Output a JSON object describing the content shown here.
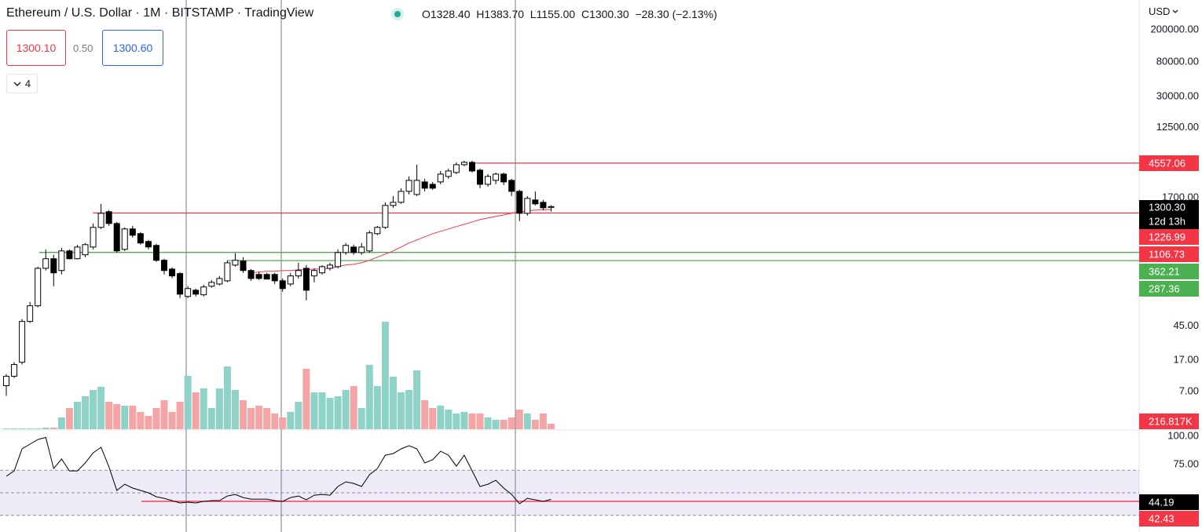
{
  "header": {
    "title": "Ethereum / U.S. Dollar · 1M · BITSTAMP · TradingView",
    "ohlc": [
      {
        "key": "O",
        "value": "1328.40"
      },
      {
        "key": "H",
        "value": "1383.70"
      },
      {
        "key": "L",
        "value": "1155.00"
      },
      {
        "key": "C",
        "value": "1300.30"
      }
    ],
    "change": "−28.30 (−2.13%)",
    "bid": "1300.10",
    "spread": "0.50",
    "ask": "1300.60",
    "indicators": "4",
    "currency": "USD"
  },
  "chart_data": [
    {
      "type": "candlestick",
      "log_scale": true,
      "grid": false,
      "ylim": [
        2.41,
        465000
      ],
      "yticks": [
        {
          "value": 200000,
          "label": "200000.00"
        },
        {
          "value": 80000,
          "label": "80000.00"
        },
        {
          "value": 30000,
          "label": "30000.00"
        },
        {
          "value": 12500,
          "label": "12500.00"
        },
        {
          "value": 1700,
          "label": "1700.00"
        },
        {
          "value": 45,
          "label": "45.00"
        },
        {
          "value": 17,
          "label": "17.00"
        },
        {
          "value": 7,
          "label": "7.00"
        }
      ],
      "up_color": "#ffffff",
      "down_color": "#000000",
      "open": [
        8.28,
        10.8,
        16.1,
        51.2,
        79.8,
        231,
        303,
        217,
        378,
        303,
        339,
        422,
        737,
        1149,
        823,
        395,
        705,
        617,
        494,
        442,
        290,
        226,
        199,
        104,
        124,
        109,
        139,
        148,
        162,
        253,
        284,
        217,
        194,
        194,
        194,
        162,
        148,
        186,
        231,
        186,
        203,
        231,
        242,
        361,
        422,
        361,
        378,
        617,
        737,
        1373,
        1500,
        2047,
        1873,
        2674,
        2500,
        2674,
        3124,
        3492,
        4361,
        4659,
        3731,
        2500,
        2796,
        3339,
        2796,
        2047,
        1099,
        1603,
        1500,
        1328.4
      ],
      "high": [
        11.55,
        16.1,
        54.7,
        89.1,
        242,
        395,
        339,
        413,
        395,
        451,
        473,
        823,
        1436,
        1201,
        861,
        737,
        770,
        645,
        516,
        462,
        303,
        237,
        208,
        139,
        130,
        145,
        166,
        186,
        290,
        354,
        317,
        226,
        208,
        203,
        203,
        173,
        203,
        270,
        253,
        231,
        253,
        270,
        395,
        473,
        452,
        473,
        674,
        770,
        1500,
        1792,
        2239,
        3122,
        4361,
        2922,
        2674,
        3649,
        3898,
        4659,
        4869,
        4869,
        3898,
        3339,
        3492,
        3492,
        2922,
        2141,
        1792,
        2047,
        1603,
        1383.7
      ],
      "low": [
        6.21,
        10.3,
        15.1,
        49.0,
        76.3,
        217,
        139,
        194,
        297,
        297,
        317,
        395,
        705,
        770,
        361,
        378,
        552,
        452,
        395,
        277,
        194,
        174,
        99.5,
        99.5,
        104,
        104,
        133,
        142,
        155,
        242,
        203,
        162,
        166,
        169,
        148,
        119,
        139,
        173,
        93.1,
        155,
        194,
        217,
        231,
        339,
        339,
        339,
        361,
        590,
        705,
        1284,
        1436,
        1873,
        1792,
        2047,
        2141,
        2500,
        2922,
        3339,
        4170,
        3492,
        2239,
        2340,
        2500,
        2445,
        1792,
        880,
        1028,
        1373,
        1201,
        1155
      ],
      "close": [
        10.8,
        15.1,
        51.2,
        79.8,
        231,
        303,
        203,
        378,
        303,
        422,
        452,
        737,
        1099,
        823,
        378,
        705,
        590,
        473,
        423,
        290,
        217,
        186,
        111,
        130,
        111,
        136,
        155,
        173,
        270,
        290,
        217,
        173,
        173,
        170,
        162,
        130,
        186,
        217,
        124,
        217,
        242,
        253,
        361,
        442,
        361,
        422,
        631,
        737,
        1373,
        1500,
        2047,
        2796,
        2796,
        2239,
        2239,
        3339,
        3649,
        4361,
        4659,
        3649,
        2500,
        3124,
        3339,
        2674,
        2047,
        1099,
        1676,
        1436,
        1284,
        1300.3
      ],
      "last_price_label": "1300.30",
      "countdown": "12d 13h",
      "volume": {
        "up_color": "#8fd3c8",
        "down_color": "#f5a5a5",
        "last_value_label": "216.817K",
        "values": [
          31000,
          31000,
          31000,
          31000,
          31000,
          62000,
          62000,
          465000,
          837000,
          1085000,
          1302000,
          1550000,
          1674000,
          1085000,
          992000,
          930000,
          930000,
          682000,
          527000,
          837000,
          1147000,
          682000,
          1085000,
          2108000,
          1457000,
          1612000,
          837000,
          1612000,
          2480000,
          1550000,
          1147000,
          837000,
          930000,
          837000,
          620000,
          465000,
          682000,
          1085000,
          2387000,
          1457000,
          1457000,
          1240000,
          1302000,
          1550000,
          1705000,
          837000,
          2542000,
          1705000,
          4247000,
          2077000,
          1457000,
          1550000,
          2325000,
          1147000,
          837000,
          930000,
          775000,
          620000,
          682000,
          620000,
          620000,
          465000,
          372000,
          372000,
          465000,
          775000,
          620000,
          372000,
          620000,
          216817
        ]
      },
      "moving_average": {
        "color": "#f23645",
        "values": [
          null,
          null,
          null,
          null,
          null,
          null,
          null,
          null,
          null,
          null,
          null,
          null,
          null,
          null,
          null,
          null,
          null,
          null,
          null,
          null,
          null,
          null,
          null,
          null,
          null,
          null,
          null,
          null,
          null,
          null,
          null,
          203,
          208,
          212,
          212,
          217,
          217,
          222,
          222,
          226,
          226,
          231,
          242,
          253,
          259,
          270,
          290,
          317,
          346,
          378,
          422,
          473,
          516,
          564,
          617,
          659,
          705,
          753,
          804,
          861,
          919,
          962,
          1005,
          1050,
          1099,
          1149,
          1175,
          1201,
          1210,
          1226.99
        ]
      },
      "levels": [
        {
          "value": 4557.06,
          "color": "#f23645"
        },
        {
          "value": 1106.73,
          "color": "#f23645"
        },
        {
          "value": 362.21,
          "color": "#4caf50"
        },
        {
          "value": 287.36,
          "color": "#4caf50"
        }
      ]
    },
    {
      "type": "line",
      "color": "#000000",
      "ylim": [
        15.3,
        104.9
      ],
      "yticks": [
        {
          "value": 100,
          "label": "100.00"
        },
        {
          "value": 75,
          "label": "75.00"
        }
      ],
      "band": [
        30,
        70
      ],
      "midline": 50,
      "band_color": "#7e57c2",
      "values": [
        64.6,
        69.4,
        88.9,
        93.1,
        97.2,
        99,
        71.5,
        79.9,
        69.4,
        69.4,
        76.4,
        85.4,
        90.3,
        72.9,
        52.1,
        57.6,
        54.2,
        52.1,
        50,
        46.5,
        45.1,
        43.1,
        41,
        41.7,
        41,
        42.4,
        43.1,
        43.1,
        47.2,
        48.6,
        45.8,
        44.4,
        44.4,
        44.4,
        43.1,
        42.4,
        45.8,
        47.2,
        43.8,
        47.9,
        48.6,
        47.9,
        55.6,
        59.7,
        58.3,
        55.6,
        66,
        71.5,
        83.3,
        84.7,
        88.9,
        91.7,
        88.9,
        76.4,
        79.2,
        86.8,
        83.3,
        73.6,
        83.3,
        69.4,
        55.6,
        57.6,
        61.1,
        54.2,
        48.6,
        40.3,
        45.1,
        43.8,
        42.4,
        44.19
      ],
      "levels": [
        {
          "value": 42.43,
          "color": "#f23645"
        }
      ]
    }
  ]
}
